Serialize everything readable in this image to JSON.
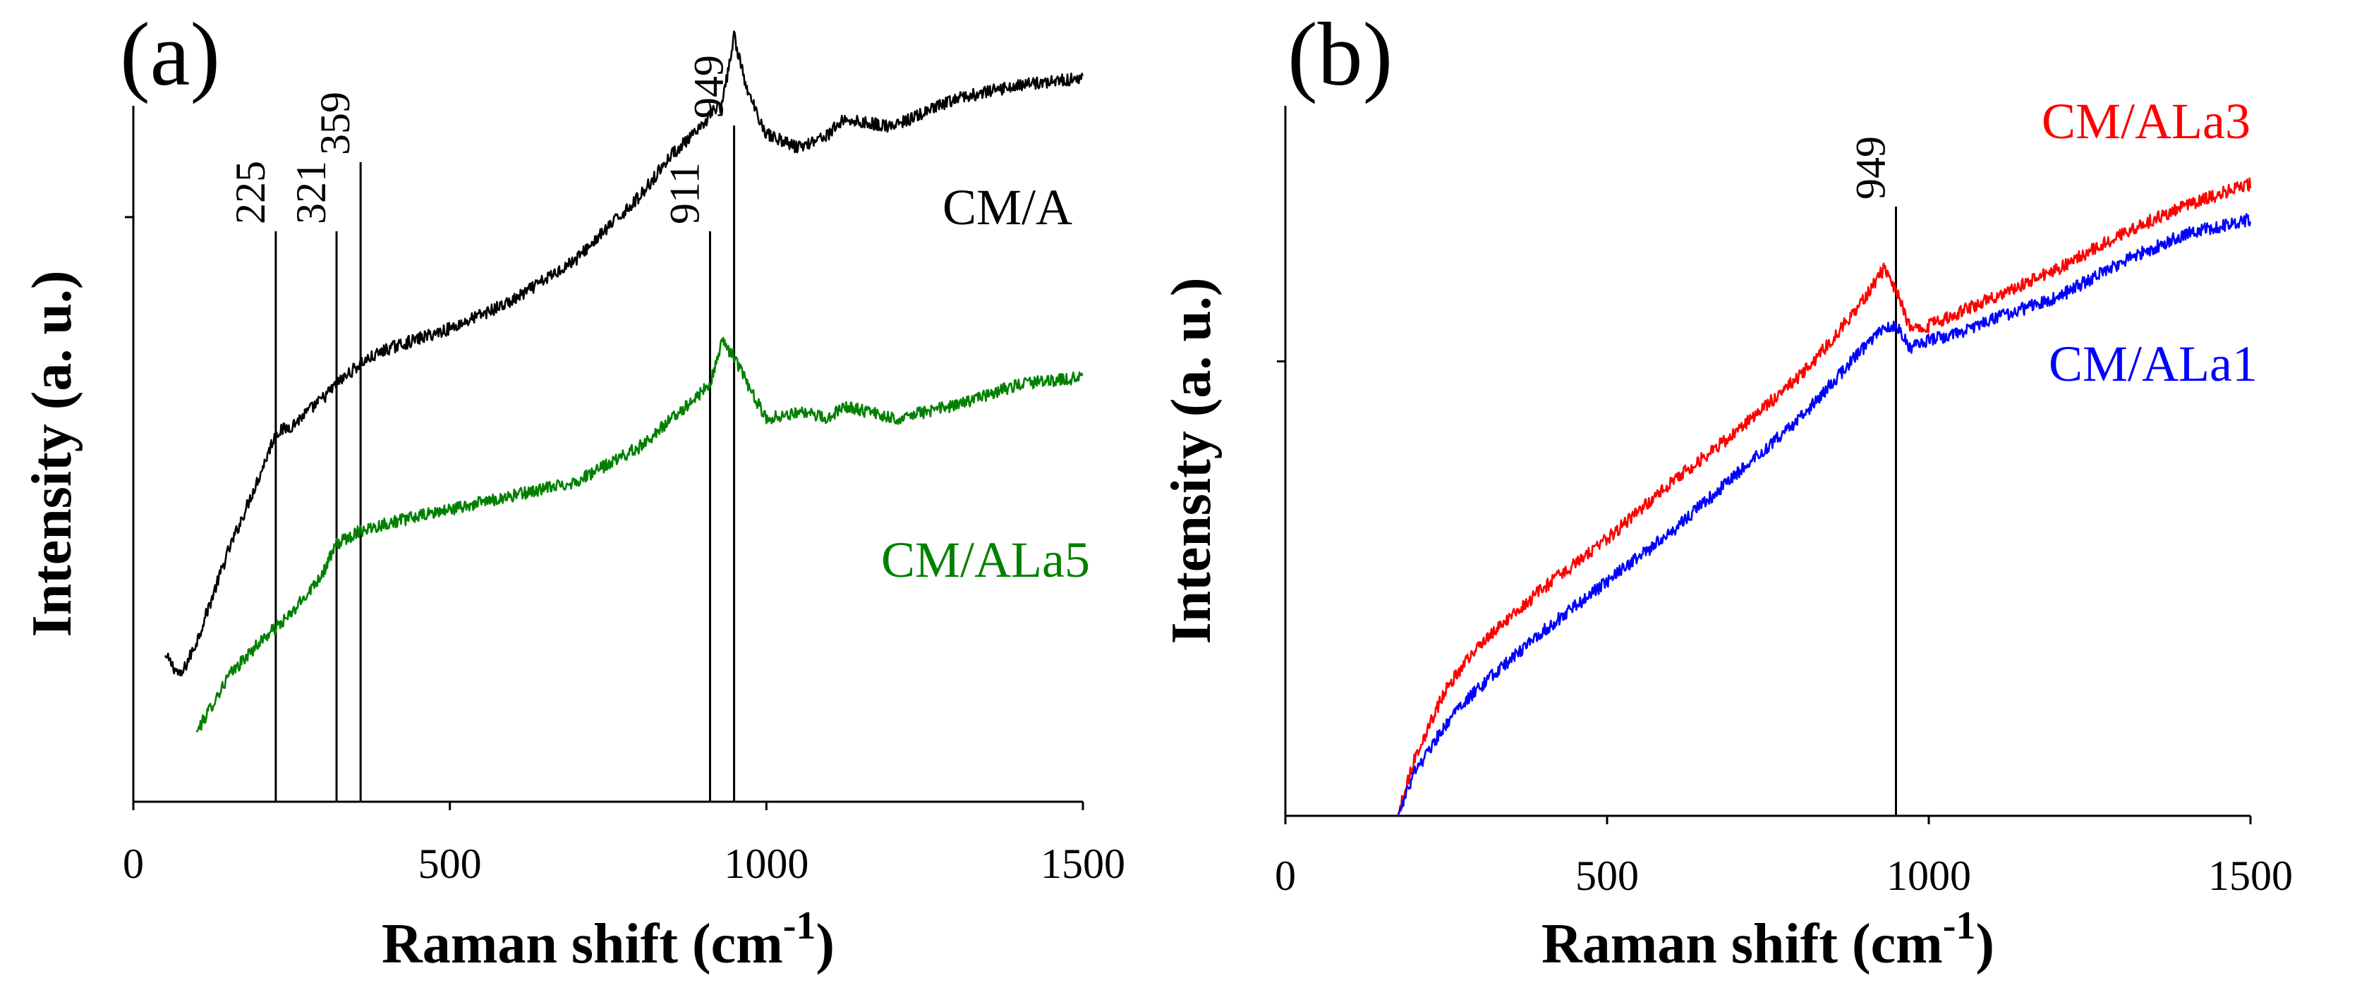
{
  "chart_data": [
    {
      "type": "line",
      "panel_label": "(a)",
      "xlabel": "Raman shift (cm",
      "xlabel_sup": "-1",
      "xlabel_close": ")",
      "ylabel": "Intensity (a. u.)",
      "xlim": [
        0,
        1500
      ],
      "ylim": [
        0,
        1
      ],
      "xticks": [
        0,
        500,
        1000,
        1500
      ],
      "xtick_labels": [
        "0",
        "500",
        "1000",
        "1500"
      ],
      "grid": false,
      "peak_lines": [
        {
          "x": 225,
          "label": "225"
        },
        {
          "x": 321,
          "label": "321"
        },
        {
          "x": 359,
          "label": "359"
        },
        {
          "x": 911,
          "label": "911"
        },
        {
          "x": 949,
          "label": "949"
        }
      ],
      "series": [
        {
          "name": "CM/A",
          "color": "#000000",
          "x": [
            50,
            75,
            100,
            150,
            200,
            225,
            250,
            300,
            321,
            359,
            400,
            500,
            600,
            700,
            800,
            850,
            900,
            911,
            930,
            949,
            970,
            1000,
            1050,
            1100,
            1120,
            1200,
            1300,
            1400,
            1500
          ],
          "y": [
            0.21,
            0.18,
            0.23,
            0.36,
            0.47,
            0.53,
            0.54,
            0.58,
            0.6,
            0.63,
            0.65,
            0.68,
            0.72,
            0.78,
            0.87,
            0.93,
            0.97,
            0.99,
            1.0,
            1.1,
            1.02,
            0.96,
            0.94,
            0.96,
            0.98,
            0.97,
            1.01,
            1.03,
            1.04
          ]
        },
        {
          "name": "CM/ALa5",
          "color": "#008000",
          "x": [
            100,
            150,
            200,
            225,
            250,
            300,
            321,
            359,
            400,
            500,
            600,
            700,
            800,
            850,
            900,
            911,
            930,
            949,
            970,
            1000,
            1050,
            1100,
            1120,
            1200,
            1300,
            1400,
            1500
          ],
          "y": [
            0.1,
            0.18,
            0.23,
            0.25,
            0.27,
            0.33,
            0.37,
            0.39,
            0.4,
            0.42,
            0.44,
            0.46,
            0.51,
            0.55,
            0.59,
            0.6,
            0.66,
            0.64,
            0.6,
            0.55,
            0.56,
            0.55,
            0.57,
            0.55,
            0.57,
            0.6,
            0.61
          ]
        }
      ]
    },
    {
      "type": "line",
      "panel_label": "(b)",
      "xlabel": "Raman shift (cm",
      "xlabel_sup": "-1",
      "xlabel_close": ")",
      "ylabel": "Intensity (a. u.)",
      "xlim": [
        0,
        1500
      ],
      "ylim": [
        0,
        1
      ],
      "xticks": [
        0,
        500,
        1000,
        1500
      ],
      "xtick_labels": [
        "0",
        "500",
        "1000",
        "1500"
      ],
      "grid": false,
      "peak_lines": [
        {
          "x": 949,
          "label": "949"
        }
      ],
      "series": [
        {
          "name": "CM/ALa3",
          "color": "#ff0000",
          "x": [
            175,
            200,
            250,
            300,
            400,
            500,
            600,
            700,
            800,
            850,
            900,
            930,
            949,
            970,
            1000,
            1050,
            1100,
            1200,
            1300,
            1400,
            1500
          ],
          "y": [
            0.0,
            0.08,
            0.18,
            0.24,
            0.32,
            0.39,
            0.47,
            0.54,
            0.62,
            0.67,
            0.73,
            0.77,
            0.74,
            0.69,
            0.69,
            0.71,
            0.73,
            0.77,
            0.82,
            0.86,
            0.89
          ]
        },
        {
          "name": "CM/ALa1",
          "color": "#0000ff",
          "x": [
            175,
            200,
            250,
            300,
            400,
            500,
            600,
            700,
            800,
            850,
            900,
            930,
            949,
            970,
            1000,
            1050,
            1100,
            1200,
            1300,
            1400,
            1500
          ],
          "y": [
            0.0,
            0.06,
            0.13,
            0.18,
            0.26,
            0.33,
            0.4,
            0.48,
            0.56,
            0.61,
            0.66,
            0.69,
            0.69,
            0.66,
            0.67,
            0.68,
            0.7,
            0.73,
            0.78,
            0.82,
            0.84
          ]
        }
      ]
    }
  ]
}
